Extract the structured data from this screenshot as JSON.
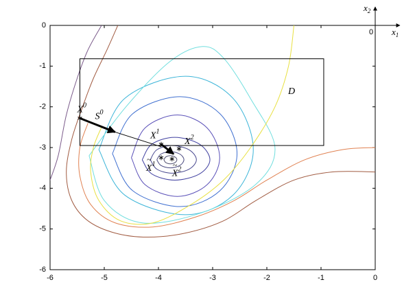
{
  "chart_data": {
    "type": "contour",
    "xlim": [
      -6,
      0
    ],
    "ylim": [
      -6,
      0
    ],
    "xticks": [
      -6,
      -5,
      -4,
      -3,
      -2,
      -1,
      0
    ],
    "yticks": [
      -6,
      -5,
      -4,
      -3,
      -2,
      -1,
      0
    ],
    "contours": [
      {
        "color": "#505070",
        "x": [
          -3.9,
          -3.864,
          -3.78,
          -3.696,
          -3.66,
          -3.696,
          -3.78,
          -3.864,
          -3.9
        ],
        "y": [
          -3.3,
          -3.23,
          -3.2,
          -3.23,
          -3.3,
          -3.37,
          -3.4,
          -3.37,
          -3.3
        ]
      },
      {
        "color": "#4a4a80",
        "x": [
          -4.03,
          -3.955,
          -3.78,
          -3.605,
          -3.53,
          -3.605,
          -3.78,
          -3.955,
          -4.03
        ],
        "y": [
          -3.3,
          -3.16,
          -3.1,
          -3.16,
          -3.3,
          -3.44,
          -3.5,
          -3.44,
          -3.3
        ]
      },
      {
        "color": "#46468e",
        "x": [
          -4.15,
          -4.03,
          -3.75,
          -3.435,
          -3.3,
          -3.435,
          -3.75,
          -4.03,
          -4.15
        ],
        "y": [
          -3.3,
          -3.055,
          -2.95,
          -3.055,
          -3.3,
          -3.531,
          -3.63,
          -3.531,
          -3.3
        ]
      },
      {
        "color": "#4040a0",
        "x": [
          -4.3,
          -4.12,
          -3.7,
          -3.245,
          -3.05,
          -3.245,
          -3.7,
          -4.12,
          -4.3
        ],
        "y": [
          -3.3,
          -2.915,
          -2.75,
          -2.915,
          -3.3,
          -3.65,
          -3.8,
          -3.65,
          -3.3
        ]
      },
      {
        "color": "#5a50b8",
        "x": [
          -4.5,
          -4.245,
          -3.65,
          -3.104,
          -2.87,
          -3.104,
          -3.65,
          -4.245,
          -4.5
        ],
        "y": [
          -3.25,
          -2.515,
          -2.2,
          -2.515,
          -3.25,
          -3.915,
          -4.2,
          -3.915,
          -3.25
        ]
      },
      {
        "color": "#3f6fd0",
        "x": [
          -4.85,
          -4.475,
          -3.6,
          -2.865,
          -2.55,
          -2.865,
          -3.6,
          -4.475,
          -4.85
        ],
        "y": [
          -3.15,
          -2.17,
          -1.75,
          -2.17,
          -3.15,
          -4.06,
          -4.45,
          -4.06,
          -3.15
        ]
      },
      {
        "color": "#3ab4d8",
        "x": [
          -5.1,
          -4.62,
          -3.5,
          -2.625,
          -2.25,
          -2.625,
          -3.5,
          -4.62,
          -5.1
        ],
        "y": [
          -3.05,
          -1.79,
          -1.25,
          -1.79,
          -3.05,
          -4.17,
          -4.65,
          -4.17,
          -3.05
        ]
      },
      {
        "color": "#70dede",
        "x": [
          -5.28,
          -4.6,
          -3.8,
          -3.2,
          -2.8,
          -2.3,
          -1.85,
          -2.2,
          -3.2,
          -4.3,
          -5.0,
          -5.28
        ],
        "y": [
          -3.2,
          -2.0,
          -0.9,
          -0.52,
          -0.8,
          -1.8,
          -3.0,
          -3.9,
          -4.6,
          -4.85,
          -4.3,
          -3.2
        ]
      },
      {
        "color": "#e8e040",
        "x": [
          -1.5,
          -1.6,
          -1.85,
          -2.3,
          -2.8,
          -3.4,
          -4.1,
          -4.7,
          -5.1,
          -5.25,
          -5.2,
          -5.05
        ],
        "y": [
          0,
          -1.0,
          -2.0,
          -3.0,
          -3.8,
          -4.4,
          -4.85,
          -4.8,
          -4.3,
          -3.6,
          -3.0,
          -2.5
        ]
      },
      {
        "color": "#e08050",
        "x": [
          0,
          -0.6,
          -1.3,
          -2.0,
          -2.6,
          -3.3,
          -4.1,
          -4.8,
          -5.25,
          -5.45,
          -5.45,
          -5.3
        ],
        "y": [
          -3.0,
          -3.05,
          -3.3,
          -3.8,
          -4.3,
          -4.7,
          -4.95,
          -4.85,
          -4.4,
          -3.7,
          -3.0,
          -2.4
        ]
      },
      {
        "color": "#a05a40",
        "x": [
          -4.75,
          -4.95,
          -5.2,
          -5.4,
          -5.6,
          -5.7,
          -5.6,
          -5.3,
          -4.8,
          -4.2,
          -3.5,
          -2.8,
          -2.2,
          -1.5,
          -0.8,
          0
        ],
        "y": [
          0,
          -0.6,
          -1.3,
          -2.0,
          -2.8,
          -3.6,
          -4.3,
          -4.8,
          -5.1,
          -5.2,
          -5.1,
          -4.8,
          -4.3,
          -3.8,
          -3.6,
          -3.6
        ]
      },
      {
        "color": "#7a5a8a",
        "x": [
          -5.05,
          -5.3,
          -5.5,
          -5.7,
          -5.85,
          -6
        ],
        "y": [
          0,
          -0.6,
          -1.3,
          -2.2,
          -3.2,
          -3.8
        ]
      }
    ],
    "region": {
      "label": "D",
      "x": [
        -5.45,
        -0.95
      ],
      "y": [
        -2.95,
        -0.82
      ]
    },
    "points": {
      "x": [
        -5.45,
        -3.95,
        -3.62,
        -3.95,
        -3.75
      ],
      "y": [
        -2.28,
        -2.92,
        -3.03,
        -3.25,
        -3.28
      ],
      "labels": [
        {
          "text": "X",
          "sup": "0"
        },
        {
          "text": "X",
          "sup": "1"
        },
        {
          "text": "X",
          "sup": "2"
        },
        {
          "text": "X",
          "sup": "1",
          "accent": "~"
        },
        {
          "text": "X",
          "sup": "2",
          "accent": "~"
        }
      ]
    },
    "arrows": [
      {
        "x": [
          -5.45,
          -4.8
        ],
        "y": [
          -2.28,
          -2.62
        ],
        "style": "thick",
        "head": true,
        "label": {
          "text": "S",
          "sup": "0"
        }
      },
      {
        "x": [
          -4.8,
          -3.95
        ],
        "y": [
          -2.62,
          -2.98
        ],
        "style": "thin",
        "head": false
      },
      {
        "x": [
          -3.95,
          -3.72
        ],
        "y": [
          -2.92,
          -3.16
        ],
        "style": "thick",
        "head": true
      }
    ],
    "axes_icon": {
      "x": {
        "text": "x",
        "sub": "1"
      },
      "y": {
        "text": "x",
        "sub": "2"
      },
      "origin": "0"
    }
  }
}
